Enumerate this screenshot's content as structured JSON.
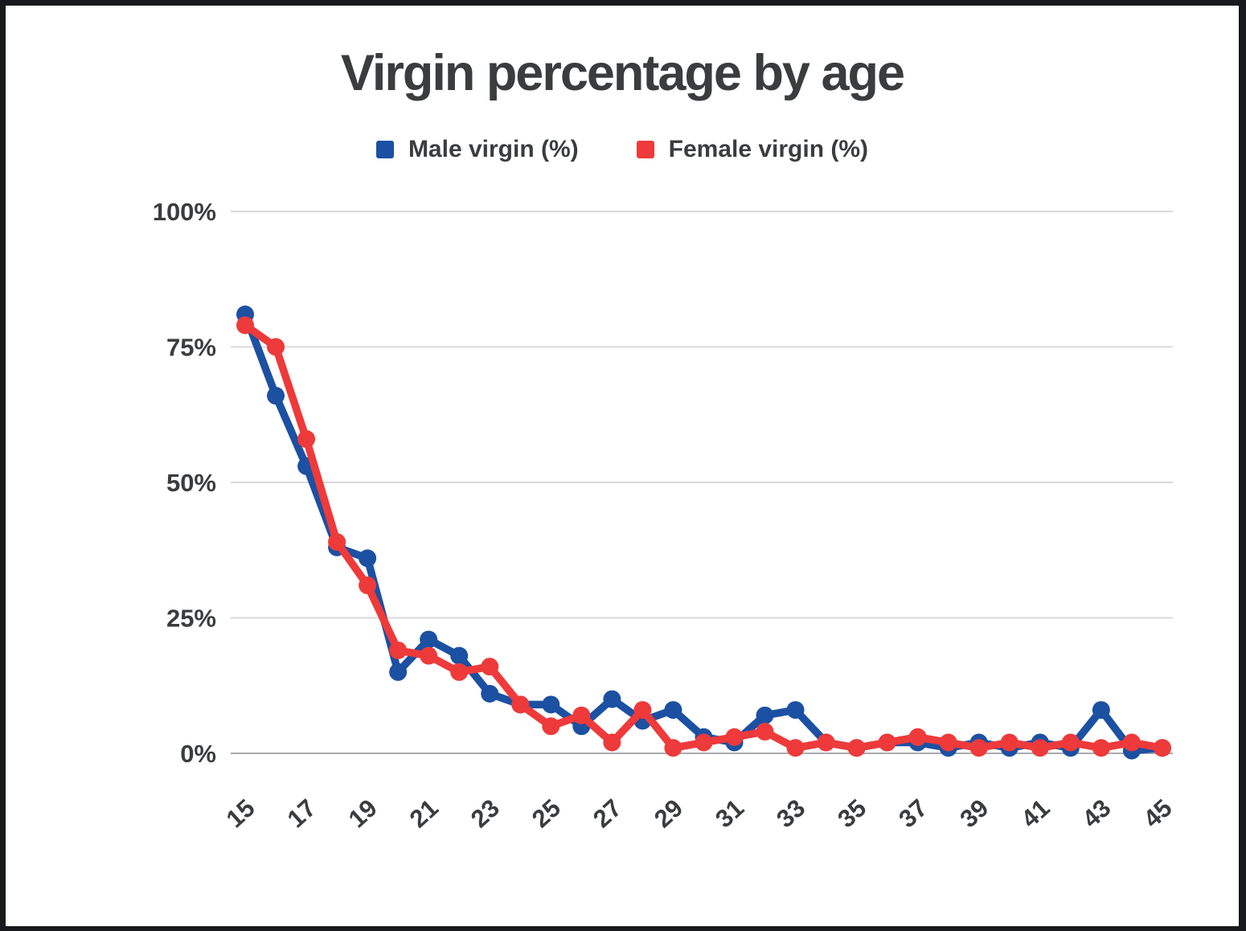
{
  "frame": {
    "background": "#17191d",
    "canvas_background": "#ffffff"
  },
  "header": {
    "title": "Virgin percentage by age"
  },
  "legend": [
    {
      "label": "Male virgin (%)",
      "color": "#1c50a2",
      "swatch": "blue-square"
    },
    {
      "label": "Female virgin (%)",
      "color": "#ee3a3a",
      "swatch": "red-square"
    }
  ],
  "colors": {
    "text": "#3a3c3e",
    "gridline": "#d9dadb",
    "baseline": "#a9abad"
  },
  "chart_data": {
    "type": "line",
    "title": "Virgin percentage by age",
    "xlabel": "",
    "ylabel": "",
    "ylim": [
      0,
      100
    ],
    "grid": true,
    "legend_position": "top",
    "x": [
      15,
      16,
      17,
      18,
      19,
      20,
      21,
      22,
      23,
      24,
      25,
      26,
      27,
      28,
      29,
      30,
      31,
      32,
      33,
      34,
      35,
      36,
      37,
      38,
      39,
      40,
      41,
      42,
      43,
      44,
      45
    ],
    "x_tick_labels": [
      "15",
      "17",
      "19",
      "21",
      "23",
      "25",
      "27",
      "29",
      "31",
      "33",
      "35",
      "37",
      "39",
      "41",
      "43",
      "45"
    ],
    "y_ticks": [
      100,
      75,
      50,
      25,
      0
    ],
    "y_tick_labels": [
      "100%",
      "75%",
      "50%",
      "25%",
      "0%"
    ],
    "series": [
      {
        "name": "Male virgin (%)",
        "color": "#1c50a2",
        "values": [
          81,
          66,
          53,
          38,
          36,
          15,
          21,
          18,
          11,
          9,
          9,
          5,
          10,
          6,
          8,
          3,
          2,
          7,
          8,
          2,
          1,
          2,
          2,
          1,
          2,
          1,
          2,
          1,
          8,
          0.5,
          1
        ]
      },
      {
        "name": "Female virgin (%)",
        "color": "#ee3a3a",
        "values": [
          79,
          75,
          58,
          39,
          31,
          19,
          18,
          15,
          16,
          9,
          5,
          7,
          2,
          8,
          1,
          2,
          3,
          4,
          1,
          2,
          1,
          2,
          3,
          2,
          1,
          2,
          1,
          2,
          1,
          2,
          1
        ]
      }
    ]
  }
}
